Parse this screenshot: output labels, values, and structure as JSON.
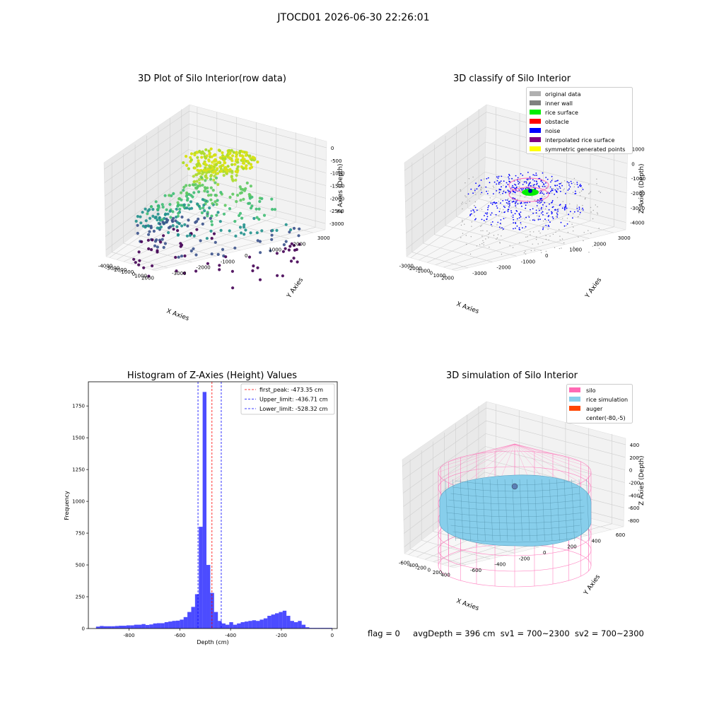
{
  "suptitle": "JTOCD01 2026-06-30 22:26:01",
  "panels": {
    "p1": {
      "title": "3D Plot of Silo Interior(row data)",
      "xlabel": "X Axies",
      "ylabel": "Y Axies",
      "zlabel": "Z Axies (Depth)",
      "xticks": [
        "-4000",
        "-3000",
        "-2000",
        "-1000",
        "0",
        "1000",
        "2000"
      ],
      "yticks": [
        "-3000",
        "-2000",
        "-1000",
        "0",
        "1000",
        "2000",
        "3000"
      ],
      "zticks": [
        "0",
        "-500",
        "-1000",
        "-1500",
        "-2000",
        "-2500",
        "-3000"
      ]
    },
    "p2": {
      "title": "3D classify of Silo Interior",
      "xlabel": "X Axies",
      "ylabel": "Y Axies",
      "zlabel": "Z Axies (Depth)",
      "xticks": [
        "-3000",
        "-2000",
        "-1000",
        "0",
        "1000",
        "2000"
      ],
      "yticks": [
        "-3000",
        "-2000",
        "-1000",
        "0",
        "1000",
        "2000",
        "3000"
      ],
      "zticks": [
        "1000",
        "0",
        "-1000",
        "-2000",
        "-3000",
        "-4000"
      ],
      "legend": [
        {
          "label": "original data",
          "color": "#b0b0b0"
        },
        {
          "label": "inner wall",
          "color": "#808080"
        },
        {
          "label": "rice surface",
          "color": "#00ee00"
        },
        {
          "label": "obstacle",
          "color": "#ff0000"
        },
        {
          "label": "noise",
          "color": "#0000ff"
        },
        {
          "label": "interpolated rice surface",
          "color": "#800080"
        },
        {
          "label": "symmetric generated points",
          "color": "#ffff00"
        }
      ]
    },
    "p3": {
      "title": "Histogram of Z-Axies (Height) Values"
    },
    "p4": {
      "title": "3D simulation of Silo Interior",
      "xlabel": "X Axies",
      "ylabel": "Y Axies",
      "zlabel": "Z Axies (Depth)",
      "xticks": [
        "-600",
        "-400",
        "-200",
        "0",
        "200",
        "400"
      ],
      "yticks": [
        "-600",
        "-400",
        "-200",
        "0",
        "200",
        "400",
        "600"
      ],
      "zticks": [
        "400",
        "200",
        "0",
        "-200",
        "-400",
        "-600",
        "-800"
      ],
      "legend": [
        {
          "label": "silo",
          "color": "#ff69b4"
        },
        {
          "label": "rice simulation",
          "color": "#87ceeb"
        },
        {
          "label": "auger",
          "color": "#ff4500"
        },
        {
          "label": "center(-80,-5)",
          "color": "#ffffff"
        }
      ]
    }
  },
  "footer": {
    "flag": "flag = 0",
    "avg": "avgDepth = 396 cm",
    "sv1": "sv1 = 700~2300",
    "sv2": "sv2 = 700~2300"
  },
  "chart_data": {
    "type": "bar",
    "title": "Histogram of Z-Axies (Height) Values",
    "xlabel": "Depth (cm)",
    "ylabel": "Frequency",
    "xlim": [
      -960,
      20
    ],
    "ylim": [
      0,
      1940
    ],
    "xticks": [
      -800,
      -600,
      -400,
      -200,
      0
    ],
    "yticks": [
      0,
      250,
      500,
      750,
      1000,
      1250,
      1500,
      1750
    ],
    "bar_color": "#0000ff",
    "bin_width": 15,
    "bin_left_edges": [
      -930,
      -915,
      -900,
      -885,
      -870,
      -855,
      -840,
      -825,
      -810,
      -795,
      -780,
      -765,
      -750,
      -735,
      -720,
      -705,
      -690,
      -675,
      -660,
      -645,
      -630,
      -615,
      -600,
      -585,
      -570,
      -555,
      -540,
      -525,
      -510,
      -495,
      -480,
      -465,
      -450,
      -435,
      -420,
      -405,
      -390,
      -375,
      -360,
      -345,
      -330,
      -315,
      -300,
      -285,
      -270,
      -255,
      -240,
      -225,
      -210,
      -195,
      -180,
      -165,
      -150,
      -135,
      -120,
      -105,
      -90,
      -75,
      -60,
      -45,
      -30,
      -15
    ],
    "values": [
      15,
      20,
      18,
      18,
      18,
      20,
      22,
      22,
      25,
      25,
      30,
      30,
      35,
      28,
      32,
      40,
      42,
      42,
      50,
      55,
      60,
      62,
      70,
      90,
      130,
      170,
      270,
      800,
      1860,
      500,
      280,
      130,
      60,
      40,
      30,
      50,
      30,
      40,
      50,
      55,
      60,
      65,
      60,
      70,
      80,
      100,
      110,
      120,
      130,
      140,
      100,
      60,
      50,
      60,
      30,
      10,
      5,
      5,
      5,
      5,
      5,
      5
    ],
    "lines": [
      {
        "label": "first_peak: -473.35 cm",
        "x": -473.35,
        "color": "#ff0000"
      },
      {
        "label": "Upper_limit: -436.71 cm",
        "x": -436.71,
        "color": "#0000ff"
      },
      {
        "label": "Lower_limit: -528.32 cm",
        "x": -528.32,
        "color": "#0000ff"
      }
    ]
  }
}
